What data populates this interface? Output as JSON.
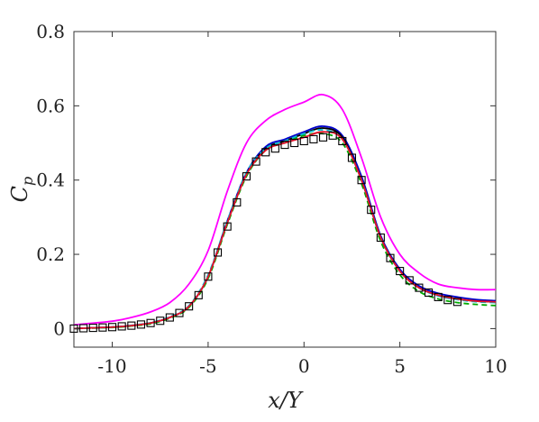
{
  "chart_data": {
    "type": "line",
    "title": "",
    "xlabel": "x/Y",
    "ylabel": "C_p",
    "ylabel_display": {
      "base": "C",
      "sub": "p"
    },
    "xlim": [
      -12,
      10
    ],
    "ylim": [
      -0.05,
      0.8
    ],
    "xticks": [
      -10,
      -5,
      0,
      5,
      10
    ],
    "xtick_labels": [
      "-10",
      "-5",
      "0",
      "5",
      "10"
    ],
    "yticks": [
      0,
      0.2,
      0.4,
      0.6,
      0.8
    ],
    "ytick_labels": [
      "0",
      "0.2",
      "0.4",
      "0.6",
      "0.8"
    ],
    "grid": false,
    "legend": "none",
    "series": [
      {
        "color": "#ff00ff",
        "style": "solid",
        "x": [
          -12,
          -10,
          -9,
          -8,
          -7,
          -6,
          -5,
          -4,
          -3,
          -2,
          -1,
          0,
          1,
          2,
          3,
          4,
          5,
          6,
          7,
          8,
          9,
          10
        ],
        "y": [
          0.01,
          0.02,
          0.03,
          0.045,
          0.07,
          0.12,
          0.21,
          0.37,
          0.5,
          0.56,
          0.59,
          0.61,
          0.63,
          0.59,
          0.46,
          0.3,
          0.2,
          0.15,
          0.12,
          0.11,
          0.105,
          0.105
        ]
      },
      {
        "color": "#0000cc",
        "style": "solid",
        "x": [
          -12,
          -10,
          -9,
          -8,
          -7,
          -6,
          -5,
          -4,
          -3,
          -2,
          -1,
          0,
          1,
          2,
          3,
          4,
          5,
          6,
          7,
          8,
          9,
          10
        ],
        "y": [
          0.0,
          0.004,
          0.008,
          0.015,
          0.03,
          0.06,
          0.14,
          0.29,
          0.42,
          0.49,
          0.51,
          0.53,
          0.545,
          0.52,
          0.41,
          0.25,
          0.16,
          0.115,
          0.095,
          0.085,
          0.078,
          0.075
        ]
      },
      {
        "color": "#000000",
        "style": "solid",
        "x": [
          -12,
          -10,
          -9,
          -8,
          -7,
          -6,
          -5,
          -4,
          -3,
          -2,
          -1,
          0,
          1,
          2,
          3,
          4,
          5,
          6,
          7,
          8,
          9,
          10
        ],
        "y": [
          0.0,
          0.004,
          0.008,
          0.015,
          0.03,
          0.06,
          0.14,
          0.285,
          0.415,
          0.485,
          0.505,
          0.525,
          0.54,
          0.515,
          0.4,
          0.245,
          0.155,
          0.11,
          0.09,
          0.08,
          0.074,
          0.072
        ]
      },
      {
        "color": "#00aa00",
        "style": "dashed",
        "x": [
          -12,
          -10,
          -9,
          -8,
          -7,
          -6,
          -5,
          -4,
          -3,
          -2,
          -1,
          0,
          1,
          2,
          3,
          4,
          5,
          6,
          7,
          8,
          9,
          10
        ],
        "y": [
          0.0,
          0.003,
          0.007,
          0.013,
          0.028,
          0.057,
          0.135,
          0.28,
          0.41,
          0.48,
          0.5,
          0.52,
          0.525,
          0.5,
          0.39,
          0.235,
          0.145,
          0.1,
          0.08,
          0.07,
          0.065,
          0.062
        ]
      },
      {
        "color": "#00bcd4",
        "style": "dashed",
        "x": [
          -12,
          -10,
          -9,
          -8,
          -7,
          -6,
          -5,
          -4,
          -3,
          -2,
          -1,
          0,
          1,
          2,
          3,
          4,
          5,
          6,
          7,
          8,
          9,
          10
        ],
        "y": [
          0.0,
          0.004,
          0.009,
          0.016,
          0.032,
          0.062,
          0.145,
          0.29,
          0.42,
          0.485,
          0.505,
          0.525,
          0.535,
          0.51,
          0.4,
          0.245,
          0.155,
          0.11,
          0.088,
          0.078,
          0.072,
          0.07
        ]
      },
      {
        "color": "#e8102a",
        "style": "solid",
        "x": [
          -12,
          -10,
          -9,
          -8,
          -7,
          -6,
          -5,
          -4,
          -3,
          -2,
          -1,
          0,
          1,
          2,
          3,
          4,
          5,
          6,
          7,
          8,
          9,
          10
        ],
        "y": [
          0.0,
          0.004,
          0.008,
          0.015,
          0.03,
          0.06,
          0.14,
          0.285,
          0.415,
          0.48,
          0.5,
          0.515,
          0.53,
          0.51,
          0.4,
          0.245,
          0.155,
          0.11,
          0.09,
          0.08,
          0.074,
          0.072
        ]
      }
    ],
    "markers": {
      "shape": "square",
      "color": "#000000",
      "x": [
        -12,
        -11.5,
        -11,
        -10.5,
        -10,
        -9.5,
        -9,
        -8.5,
        -8,
        -7.5,
        -7,
        -6.5,
        -6,
        -5.5,
        -5,
        -4.5,
        -4,
        -3.5,
        -3,
        -2.5,
        -2,
        -1.5,
        -1,
        -0.5,
        0,
        0.5,
        1,
        1.5,
        2,
        2.5,
        3,
        3.5,
        4,
        4.5,
        5,
        5.5,
        6,
        6.5,
        7,
        7.5,
        8
      ],
      "y": [
        0.0,
        0.001,
        0.002,
        0.003,
        0.004,
        0.006,
        0.008,
        0.011,
        0.015,
        0.021,
        0.03,
        0.042,
        0.06,
        0.09,
        0.14,
        0.205,
        0.275,
        0.34,
        0.41,
        0.45,
        0.475,
        0.485,
        0.495,
        0.5,
        0.505,
        0.51,
        0.515,
        0.52,
        0.505,
        0.46,
        0.4,
        0.32,
        0.245,
        0.19,
        0.155,
        0.13,
        0.11,
        0.097,
        0.085,
        0.077,
        0.072
      ]
    }
  }
}
